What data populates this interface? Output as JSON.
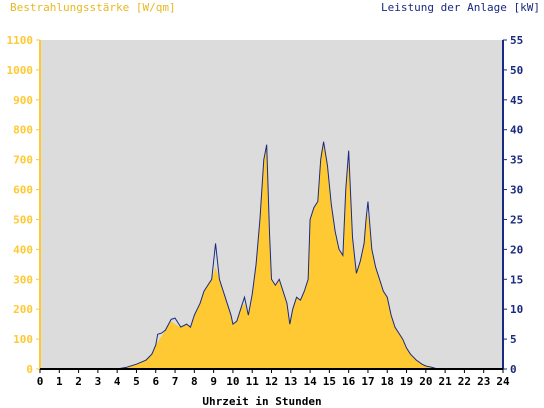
{
  "chart_data": {
    "type": "area",
    "title_left": "Bestrahlungsstärke [W/qm]",
    "title_right": "Leistung der Anlage [kW]",
    "xlabel": "Uhrzeit in Stunden",
    "xlim": [
      0,
      24
    ],
    "x_ticks": [
      "0",
      "1",
      "2",
      "3",
      "4",
      "5",
      "6",
      "7",
      "8",
      "9",
      "10",
      "11",
      "12",
      "13",
      "14",
      "15",
      "16",
      "17",
      "18",
      "19",
      "20",
      "21",
      "22",
      "23",
      "24"
    ],
    "y_left_lim": [
      0,
      1100
    ],
    "y_left_ticks": [
      "0",
      "100",
      "200",
      "300",
      "400",
      "500",
      "600",
      "700",
      "800",
      "900",
      "1000",
      "1100"
    ],
    "y_right_lim": [
      0,
      55
    ],
    "y_right_ticks": [
      "0",
      "5",
      "10",
      "15",
      "20",
      "25",
      "30",
      "35",
      "40",
      "45",
      "50",
      "55"
    ],
    "grid": false,
    "colors": {
      "plot_bg": "#dcdcdc",
      "irradiance_fill": "#ffc933",
      "power_line": "#1a2a80",
      "left_axis": "#ffc933",
      "right_axis": "#1a2a80",
      "x_axis": "#000000"
    },
    "series": [
      {
        "axis": "left",
        "x": [
          0,
          4,
          4.5,
          5,
          5.5,
          5.8,
          6,
          6.1,
          6.3,
          6.5,
          6.8,
          7,
          7.3,
          7.6,
          7.8,
          8,
          8.3,
          8.5,
          8.7,
          8.9,
          9.1,
          9.3,
          9.5,
          9.7,
          9.9,
          10,
          10.2,
          10.4,
          10.6,
          10.8,
          11,
          11.2,
          11.4,
          11.6,
          11.75,
          11.9,
          12,
          12.2,
          12.4,
          12.6,
          12.8,
          12.95,
          13.1,
          13.3,
          13.5,
          13.7,
          13.9,
          14,
          14.2,
          14.4,
          14.55,
          14.7,
          14.9,
          15.1,
          15.3,
          15.5,
          15.7,
          15.85,
          16,
          16.2,
          16.4,
          16.6,
          16.8,
          16.9,
          17,
          17.2,
          17.4,
          17.6,
          17.8,
          18,
          18.2,
          18.4,
          18.6,
          18.8,
          19,
          19.2,
          19.5,
          19.8,
          20,
          20.3,
          20.5,
          21,
          24
        ],
        "y": [
          0,
          0,
          5,
          15,
          30,
          50,
          80,
          90,
          110,
          130,
          160,
          150,
          140,
          150,
          140,
          180,
          220,
          260,
          280,
          300,
          340,
          300,
          260,
          220,
          180,
          150,
          160,
          200,
          220,
          180,
          250,
          350,
          500,
          700,
          740,
          450,
          300,
          280,
          300,
          260,
          220,
          150,
          200,
          240,
          230,
          260,
          300,
          500,
          540,
          560,
          720,
          760,
          680,
          550,
          460,
          400,
          380,
          600,
          700,
          440,
          320,
          360,
          420,
          500,
          520,
          400,
          340,
          300,
          260,
          240,
          180,
          140,
          120,
          100,
          70,
          50,
          30,
          15,
          10,
          5,
          2,
          0,
          0
        ]
      },
      {
        "axis": "right",
        "x": [
          0,
          4,
          4.5,
          5,
          5.5,
          5.8,
          6,
          6.1,
          6.3,
          6.5,
          6.8,
          7,
          7.3,
          7.6,
          7.8,
          8,
          8.3,
          8.5,
          8.7,
          8.9,
          9.1,
          9.3,
          9.5,
          9.7,
          9.9,
          10,
          10.2,
          10.4,
          10.6,
          10.8,
          11,
          11.2,
          11.4,
          11.6,
          11.75,
          11.9,
          12,
          12.2,
          12.4,
          12.6,
          12.8,
          12.95,
          13.1,
          13.3,
          13.5,
          13.7,
          13.9,
          14,
          14.2,
          14.4,
          14.55,
          14.7,
          14.9,
          15.1,
          15.3,
          15.5,
          15.7,
          15.85,
          16,
          16.2,
          16.4,
          16.6,
          16.8,
          16.9,
          17,
          17.2,
          17.4,
          17.6,
          17.8,
          18,
          18.2,
          18.4,
          18.6,
          18.8,
          19,
          19.2,
          19.5,
          19.8,
          20,
          20.3,
          20.5,
          21,
          24
        ],
        "y": [
          0,
          0,
          0.3,
          0.8,
          1.5,
          2.5,
          4,
          5.8,
          6,
          6.5,
          8.3,
          8.5,
          7,
          7.5,
          7,
          9,
          11,
          13,
          14,
          15,
          21,
          15,
          13,
          11,
          9,
          7.5,
          8,
          10,
          12,
          9,
          12.5,
          17.5,
          25,
          35,
          37.5,
          22.5,
          15,
          14,
          15,
          13,
          11,
          7.5,
          10,
          12,
          11.5,
          13,
          15,
          25,
          27,
          28,
          35,
          38,
          34,
          27.5,
          23,
          20,
          19,
          30,
          36.5,
          22,
          16,
          18,
          21,
          25,
          28,
          20,
          17,
          15,
          13,
          12,
          9,
          7,
          6,
          5,
          3.5,
          2.5,
          1.5,
          0.8,
          0.5,
          0.3,
          0.1,
          0,
          0
        ]
      }
    ]
  }
}
